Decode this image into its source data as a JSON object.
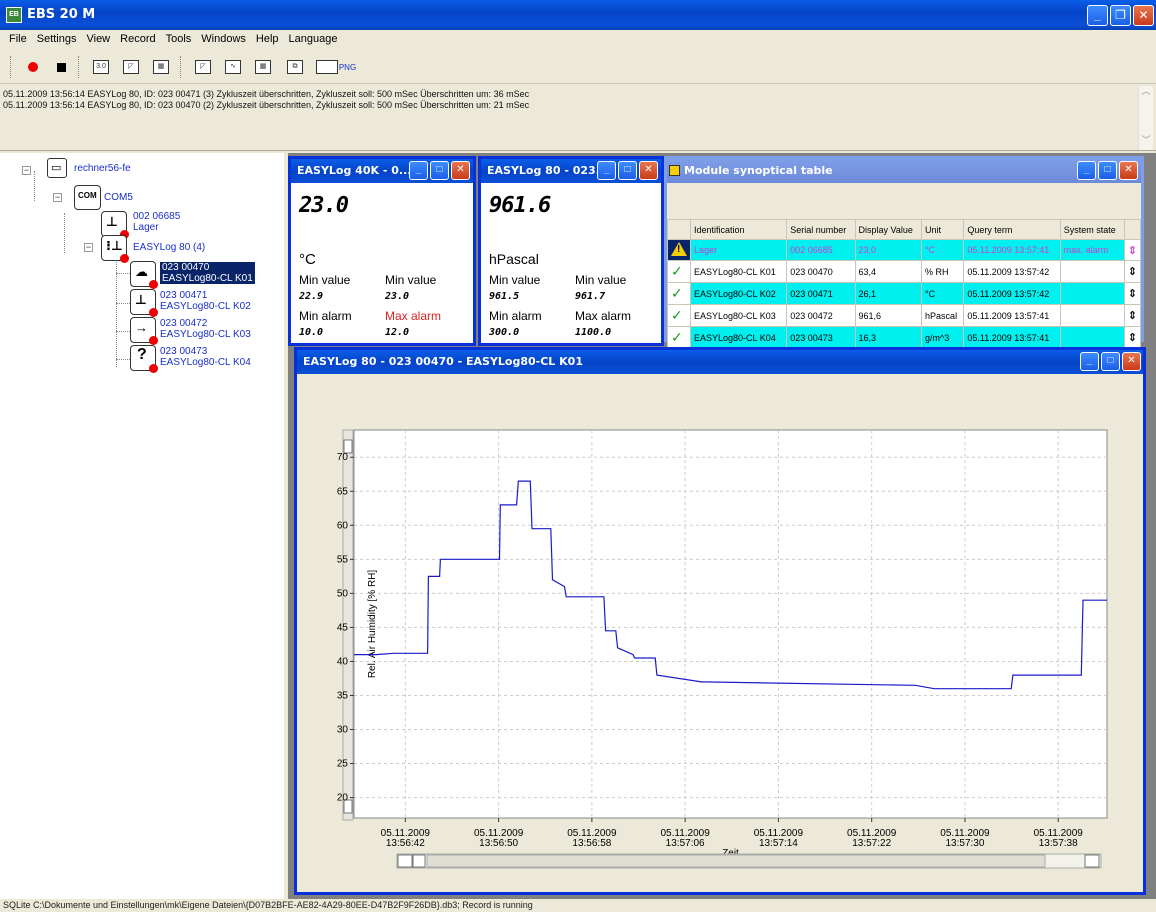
{
  "window": {
    "title": "EBS 20 M",
    "icon_label": "EB"
  },
  "menu": [
    "File",
    "Settings",
    "View",
    "Record",
    "Tools",
    "Windows",
    "Help",
    "Language"
  ],
  "toolbar": {
    "items": [
      "record-icon",
      "stop-icon",
      "display-3d-icon",
      "chart-icon",
      "table-icon",
      "chart-icon",
      "chart-icon",
      "table-icon",
      "copy-icon",
      "export-png-icon"
    ],
    "png_label": "PNG",
    "display_label": "3.0"
  },
  "log": [
    "05.11.2009 13:56:14 EASYLog 80, ID: 023 00471 (3) Zykluszeit überschritten, Zykluszeit soll: 500 mSec Überschritten um: 36 mSec",
    "05.11.2009 13:56:14 EASYLog 80, ID: 023 00470 (2) Zykluszeit überschritten, Zykluszeit soll: 500 mSec Überschritten um: 21 mSec"
  ],
  "tree": {
    "root": "rechner56-fe",
    "port": "COM5",
    "port_icon_label": "COM",
    "devices": [
      {
        "id": "002 06685",
        "name": "Lager"
      },
      {
        "id": "EASYLog 80 (4)",
        "name": ""
      }
    ],
    "children": [
      {
        "id": "023 00470",
        "name": "EASYLog80-CL K01",
        "selected": true
      },
      {
        "id": "023 00471",
        "name": "EASYLog80-CL K02"
      },
      {
        "id": "023 00472",
        "name": "EASYLog80-CL K03"
      },
      {
        "id": "023 00473",
        "name": "EASYLog80-CL K04"
      }
    ]
  },
  "sensor1": {
    "title": "EASYLog 40K - 0...",
    "value": "23.0",
    "unit": "°C",
    "min_value_label": "Min value",
    "max_value_label": "Min value",
    "min_value": "22.9",
    "max_value": "23.0",
    "min_alarm_label": "Min alarm",
    "max_alarm_label": "Max alarm",
    "min_alarm": "10.0",
    "max_alarm": "12.0",
    "max_alarm_color": "#e02020"
  },
  "sensor2": {
    "title": "EASYLog 80 - 023...",
    "value": "961.6",
    "unit": "hPascal",
    "min_value_label": "Min value",
    "max_value_label": "Min value",
    "min_value": "961.5",
    "max_value": "961.7",
    "min_alarm_label": "Min alarm",
    "max_alarm_label": "Max alarm",
    "min_alarm": "300.0",
    "max_alarm": "1100.0"
  },
  "synoptic": {
    "title": "Module synoptical table",
    "headers": [
      "Identification",
      "Serial number",
      "Display Value",
      "Unit",
      "Query term",
      "System state"
    ],
    "rows": [
      {
        "status": "warning",
        "cells": [
          "Lager",
          "002 06685",
          "23,0",
          "°C",
          "05.11.2009 13:57:41",
          "max. alarm"
        ],
        "style": "row-alarm"
      },
      {
        "status": "ok",
        "cells": [
          "EASYLog80-CL K01",
          "023 00470",
          "63,4",
          "% RH",
          "05.11.2009 13:57:42",
          ""
        ],
        "style": "row-white"
      },
      {
        "status": "ok",
        "cells": [
          "EASYLog80-CL K02",
          "023 00471",
          "26,1",
          "°C",
          "05.11.2009 13:57:42",
          ""
        ],
        "style": "row-cyan"
      },
      {
        "status": "ok",
        "cells": [
          "EASYLog80-CL K03",
          "023 00472",
          "961,6",
          "hPascal",
          "05.11.2009 13:57:41",
          ""
        ],
        "style": "row-white"
      },
      {
        "status": "ok",
        "cells": [
          "EASYLog80-CL K04",
          "023 00473",
          "16,3",
          "g/m^3",
          "05.11.2009 13:57:41",
          ""
        ],
        "style": "row-cyan"
      }
    ]
  },
  "chart_window": {
    "title": "EASYLog 80 - 023 00470 - EASYLog80-CL K01"
  },
  "chart_data": {
    "type": "line",
    "title": "",
    "xlabel": "Zeit",
    "ylabel": "Rel. Air Humidity [% RH]",
    "ylim": [
      17,
      74
    ],
    "yticks": [
      20,
      25,
      30,
      35,
      40,
      45,
      50,
      55,
      60,
      65,
      70
    ],
    "x_tick_labels": [
      [
        "05.11.2009",
        "13:56:42"
      ],
      [
        "05.11.2009",
        "13:56:50"
      ],
      [
        "05.11.2009",
        "13:56:58"
      ],
      [
        "05.11.2009",
        "13:57:06"
      ],
      [
        "05.11.2009",
        "13:57:14"
      ],
      [
        "05.11.2009",
        "13:57:22"
      ],
      [
        "05.11.2009",
        "13:57:30"
      ],
      [
        "05.11.2009",
        "13:57:38"
      ]
    ],
    "grid": true,
    "line_color": "#1a1acc",
    "series": [
      {
        "name": "",
        "x": [
          0,
          1.3,
          2.3,
          2.35,
          2.75,
          2.8,
          3.6,
          3.65,
          4.3,
          4.35,
          5.0,
          5.05,
          6.4,
          6.45,
          8.5,
          8.55,
          9.1,
          9.15,
          9.5,
          9.6,
          10.0,
          10.1,
          10.3,
          10.4,
          11.5,
          11.6,
          12.3,
          12.4,
          13.0,
          13.1,
          13.5,
          13.6,
          14.6,
          14.7,
          15.3,
          15.4,
          16.3,
          16.4,
          17.6,
          17.7,
          20.3,
          20.4,
          32.7,
          32.8,
          33.9,
          33.95,
          34.9,
          34.95,
          37.3,
          37.4,
          38.4,
          38.5,
          38.9,
          39.0,
          39.6,
          39.7,
          42.5,
          42.6,
          44.0
        ],
        "y": [
          41,
          41,
          41.2,
          41.2,
          41.2,
          41.2,
          41.2,
          41.2,
          41.2,
          52.5,
          52.5,
          55,
          55,
          55,
          55,
          63,
          63,
          63,
          63,
          66.5,
          66.5,
          66.5,
          66.5,
          59.5,
          59.5,
          52,
          51,
          49.5,
          49.5,
          49.5,
          49.5,
          49.5,
          49.5,
          44.5,
          44.5,
          42,
          41,
          40.5,
          40.5,
          38,
          37,
          37,
          36.5,
          36.5,
          36,
          36,
          36,
          36,
          36,
          36,
          36,
          38,
          38,
          38,
          38,
          38,
          38,
          49,
          49
        ]
      }
    ]
  },
  "statusbar": "SQLite C:\\Dokumente und Einstellungen\\mk\\Eigene Dateien\\{D07B2BFE-AE82-4A29-80EE-D47B2F9F26DB}.db3; Record is running"
}
